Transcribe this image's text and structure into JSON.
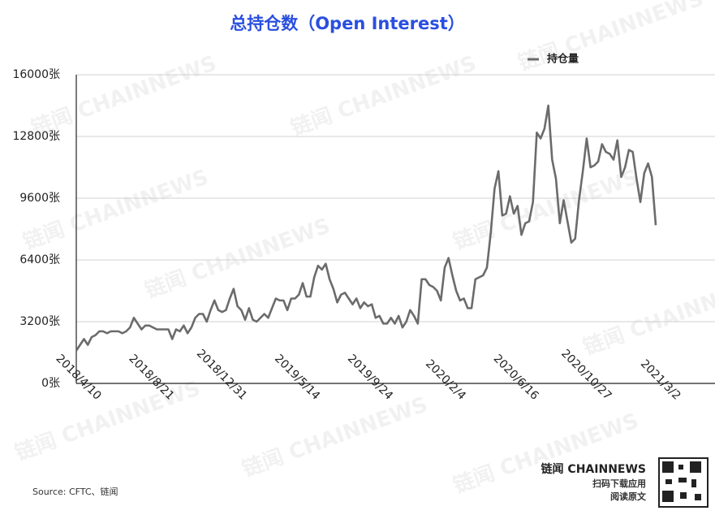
{
  "chart_data": {
    "type": "line",
    "title": "总持仓数（Open Interest）",
    "source": "Source: CFTC、链闻",
    "categories": [
      "2018/4/10",
      null,
      null,
      null,
      null,
      null,
      null,
      null,
      null,
      null,
      null,
      null,
      null,
      null,
      null,
      null,
      null,
      null,
      null,
      "2018/8/21",
      null,
      null,
      null,
      null,
      null,
      null,
      null,
      null,
      null,
      null,
      null,
      null,
      null,
      null,
      null,
      null,
      null,
      null,
      "2018/12/31",
      null,
      null,
      null,
      null,
      null,
      null,
      null,
      null,
      null,
      null,
      null,
      null,
      null,
      null,
      null,
      null,
      null,
      null,
      "2019/5/14",
      null,
      null,
      null,
      null,
      null,
      null,
      null,
      null,
      null,
      null,
      null,
      null,
      null,
      null,
      null,
      null,
      null,
      null,
      "2019/9/24",
      null,
      null,
      null,
      null,
      null,
      null,
      null,
      null,
      null,
      null,
      null,
      null,
      null,
      null,
      null,
      null,
      null,
      null,
      "2020/2/4",
      null,
      null,
      null,
      null,
      null,
      null,
      null,
      null,
      null,
      null,
      null,
      null,
      null,
      null,
      null,
      null,
      null,
      null,
      "2020/6/16",
      null,
      null,
      null,
      null,
      null,
      null,
      null,
      null,
      null,
      null,
      null,
      null,
      null,
      null,
      null,
      null,
      null,
      null,
      "2020/10/27",
      null,
      null,
      null,
      null,
      null,
      null,
      null,
      null,
      null,
      null,
      null,
      null,
      null,
      null,
      null,
      null,
      null,
      "2021/3/2"
    ],
    "series": [
      {
        "name": "持仓量",
        "color": "#6b6b6b",
        "values": [
          1700,
          2000,
          2300,
          2000,
          2400,
          2500,
          2700,
          2700,
          2600,
          2700,
          2700,
          2700,
          2600,
          2700,
          2900,
          3400,
          3100,
          2800,
          3000,
          3000,
          2900,
          2800,
          2800,
          2800,
          2800,
          2300,
          2800,
          2700,
          3000,
          2600,
          2900,
          3400,
          3600,
          3600,
          3200,
          3800,
          4300,
          3800,
          3700,
          3800,
          4400,
          4900,
          4000,
          3800,
          3300,
          3900,
          3300,
          3200,
          3400,
          3600,
          3400,
          3900,
          4400,
          4300,
          4300,
          3800,
          4400,
          4400,
          4600,
          5200,
          4500,
          4500,
          5500,
          6100,
          5900,
          6200,
          5400,
          4900,
          4200,
          4600,
          4700,
          4400,
          4100,
          4400,
          3900,
          4200,
          4000,
          4100,
          3400,
          3500,
          3100,
          3100,
          3400,
          3100,
          3500,
          2900,
          3200,
          3800,
          3500,
          3100,
          5400,
          5400,
          5100,
          5000,
          4800,
          4300,
          6000,
          6500,
          5600,
          4800,
          4300,
          4400,
          3900,
          3900,
          5400,
          5500,
          5600,
          6000,
          7800,
          10100,
          11000,
          8700,
          8800,
          9700,
          8800,
          9200,
          7700,
          8300,
          8400,
          9400,
          13000,
          12700,
          13200,
          14400,
          11600,
          10600,
          8300,
          9500,
          8400,
          7300,
          7500,
          9500,
          11000,
          12700,
          11200,
          11300,
          11500,
          12400,
          12000,
          11900,
          11600,
          12600,
          10700,
          11200,
          12100,
          12000,
          10600,
          9400,
          10900,
          11400,
          10700,
          8200
        ]
      }
    ],
    "ylim": [
      0,
      16000
    ],
    "yticks": [
      {
        "value": 0,
        "label": "0张"
      },
      {
        "value": 3200,
        "label": "3200张"
      },
      {
        "value": 6400,
        "label": "6400张"
      },
      {
        "value": 9600,
        "label": "9600张"
      },
      {
        "value": 12800,
        "label": "12800张"
      },
      {
        "value": 16000,
        "label": "16000张"
      }
    ],
    "grid": true,
    "legend": "top-right"
  },
  "branding": {
    "logo": "链闻 CHAINNEWS",
    "line1": "扫码下载应用",
    "line2": "阅读原文",
    "watermark": "链闻 CHAINNEWS"
  }
}
